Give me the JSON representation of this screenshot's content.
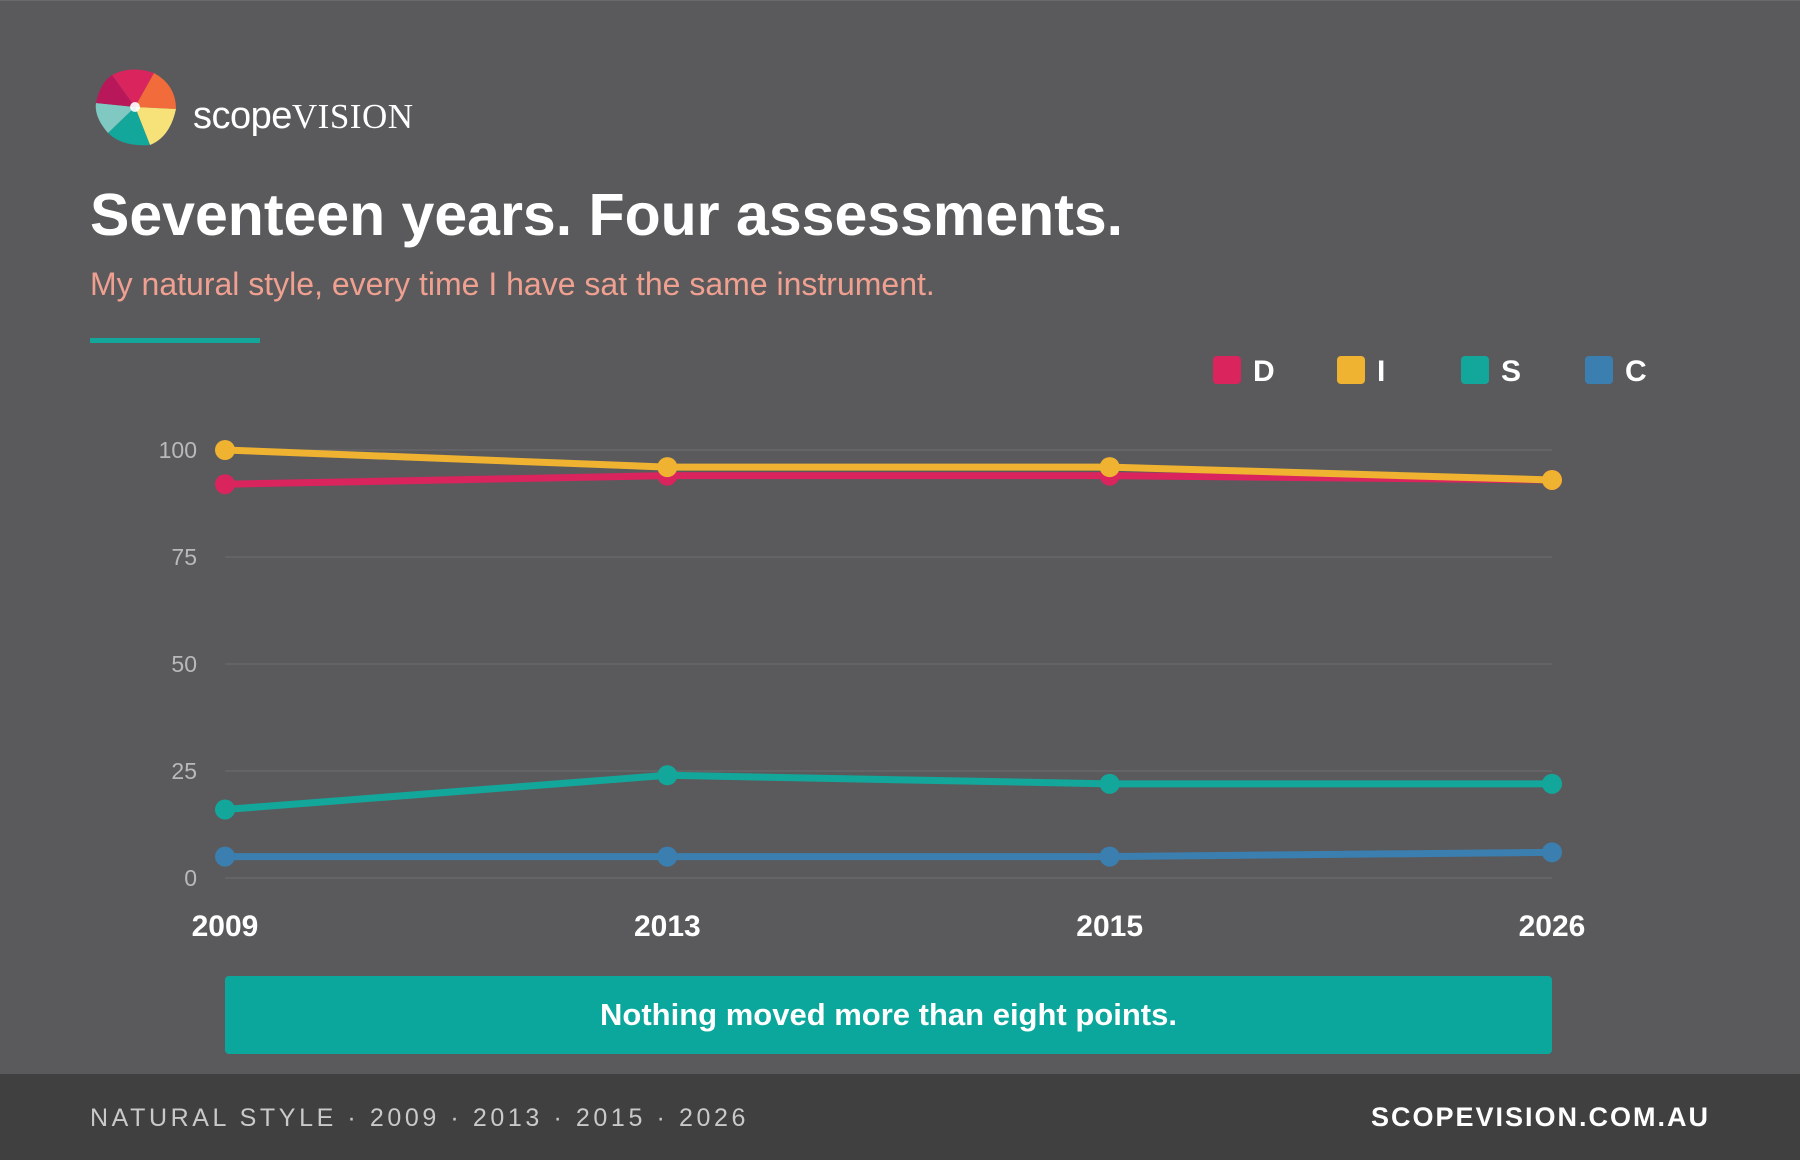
{
  "brand": {
    "name_a": "scope",
    "name_b": "VISION"
  },
  "title": "Seventeen years. Four assessments.",
  "subtitle": "My natural style, every time I have sat the same instrument.",
  "callout": "Nothing moved more than eight points.",
  "footer": {
    "left": "NATURAL STYLE · 2009 · 2013 · 2015 · 2026",
    "right": "SCOPEVISION.COM.AU"
  },
  "chart_data": {
    "type": "line",
    "x": [
      "2009",
      "2013",
      "2015",
      "2026"
    ],
    "ylim": [
      0,
      100
    ],
    "yticks": [
      0,
      25,
      50,
      75,
      100
    ],
    "grid": true,
    "legend_position": "top-right",
    "series": [
      {
        "name": "D",
        "color": "#d9245e",
        "values": [
          92,
          94,
          94,
          93
        ]
      },
      {
        "name": "I",
        "color": "#efb231",
        "values": [
          100,
          96,
          96,
          93
        ]
      },
      {
        "name": "S",
        "color": "#13a79b",
        "values": [
          16,
          24,
          22,
          22
        ]
      },
      {
        "name": "C",
        "color": "#3a7fb0",
        "values": [
          5,
          5,
          5,
          6
        ]
      }
    ]
  }
}
